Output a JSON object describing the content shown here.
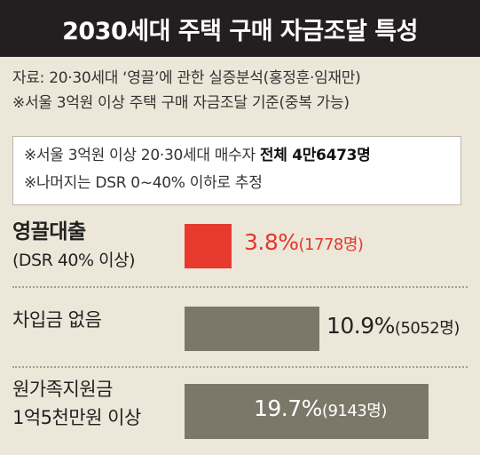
{
  "title": "2030세대 주택 구매 자금조달 특성",
  "source": {
    "line1": "자료: 20·30세대 ‘영끌’에 관한 실증분석(홍정훈·임재만)",
    "line2": "※서울 3억원 이상 주택 구매 자금조달 기준(중복 가능)"
  },
  "notes": {
    "line1_prefix": "※서울 3억원 이상 20·30세대 매수자 ",
    "line1_strong": "전체 4만6473명",
    "line2": "※나머지는 DSR 0~40% 이하로 추정"
  },
  "rows": [
    {
      "label1": "영끌대출",
      "label2": "(DSR 40% 이상)",
      "pct": "3.8%",
      "count": "(1778명)"
    },
    {
      "label1": "차입금 없음",
      "pct": "10.9%",
      "count": "(5052명)"
    },
    {
      "label1": "원가족지원금",
      "label2": "1억5천만원 이상",
      "pct": "19.7%",
      "count": "(9143명)"
    }
  ],
  "colors": {
    "highlight": "#e8392e",
    "bar": "#7c7869",
    "title_bg": "#231f20",
    "background": "#ede7d9"
  },
  "chart_data": {
    "type": "bar",
    "orientation": "horizontal",
    "categories": [
      "영끌대출 (DSR 40% 이상)",
      "차입금 없음",
      "원가족지원금 1억5천만원 이상"
    ],
    "values": [
      3.8,
      10.9,
      19.7
    ],
    "counts": [
      1778,
      5052,
      9143
    ],
    "unit": "%",
    "title": "2030세대 주택 구매 자금조달 특성"
  }
}
